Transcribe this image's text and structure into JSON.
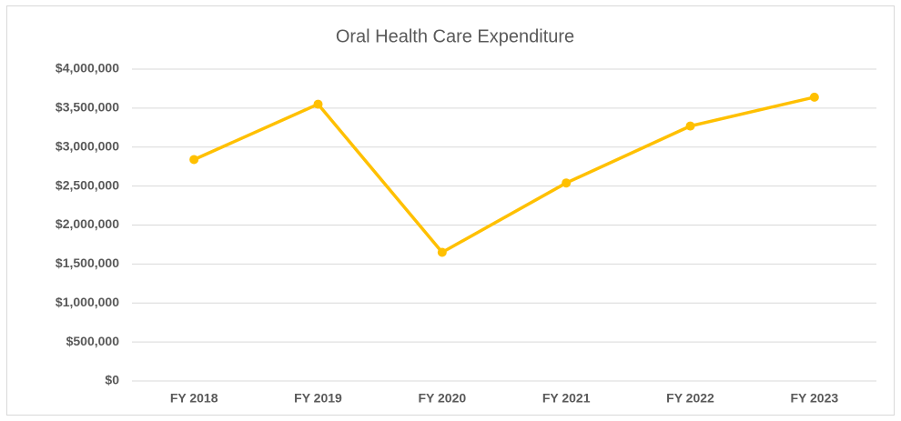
{
  "chart_data": {
    "type": "line",
    "title": "Oral Health Care Expenditure",
    "categories": [
      "FY 2018",
      "FY 2019",
      "FY 2020",
      "FY 2021",
      "FY 2022",
      "FY 2023"
    ],
    "series": [
      {
        "name": "Expenditure",
        "color": "#ffc000",
        "values": [
          2840000,
          3550000,
          1650000,
          2540000,
          3270000,
          3640000
        ]
      }
    ],
    "ylim": [
      0,
      4000000
    ],
    "yticks": [
      {
        "value": 0,
        "label": "$0"
      },
      {
        "value": 500000,
        "label": "$500,000"
      },
      {
        "value": 1000000,
        "label": "$1,000,000"
      },
      {
        "value": 1500000,
        "label": "$1,500,000"
      },
      {
        "value": 2000000,
        "label": "$2,000,000"
      },
      {
        "value": 2500000,
        "label": "$2,500,000"
      },
      {
        "value": 3000000,
        "label": "$3,000,000"
      },
      {
        "value": 3500000,
        "label": "$3,500,000"
      },
      {
        "value": 4000000,
        "label": "$4,000,000"
      }
    ],
    "grid": true
  }
}
